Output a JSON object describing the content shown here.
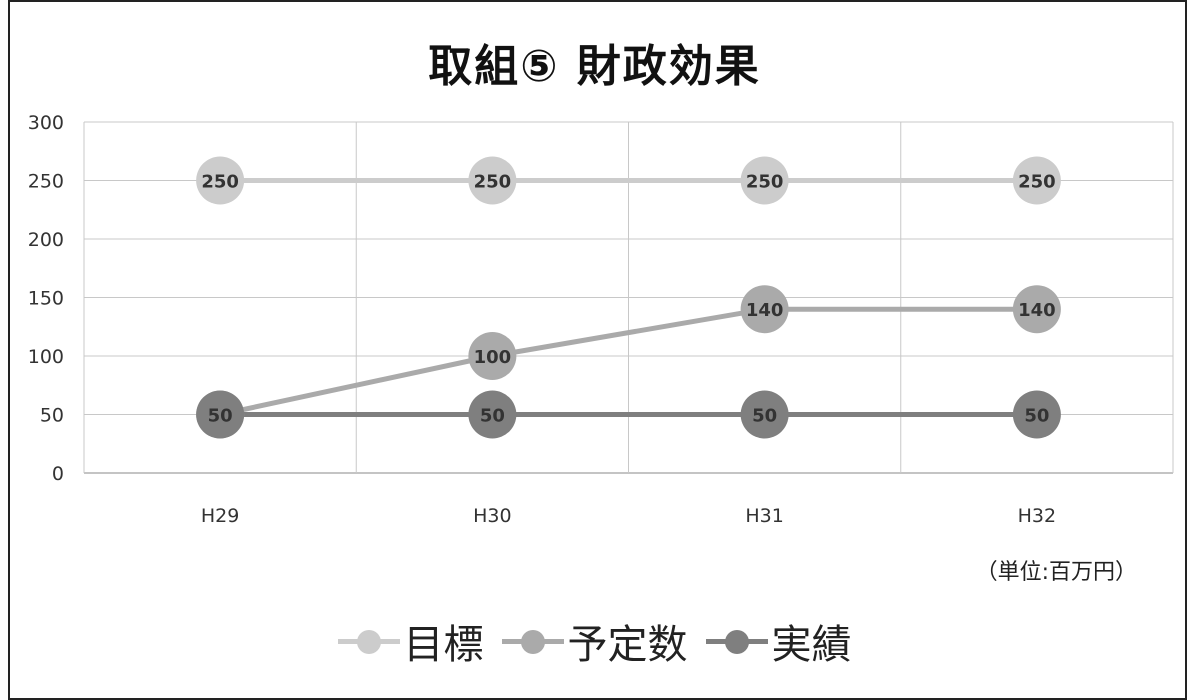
{
  "title": "取組⑤ 財政効果",
  "unit_note": "（単位:百万円）",
  "colors": {
    "target": "#cccccc",
    "planned": "#aaaaaa",
    "actual": "#7f7f7f",
    "grid": "#c8c8c8",
    "axis": "#888888"
  },
  "chart_data": {
    "type": "line",
    "categories": [
      "H29",
      "H30",
      "H31",
      "H32"
    ],
    "ylim": [
      0,
      300
    ],
    "yticks": [
      0,
      50,
      100,
      150,
      200,
      250,
      300
    ],
    "grid": true,
    "legend_position": "bottom",
    "series": [
      {
        "name": "目標",
        "values": [
          250,
          250,
          250,
          250
        ],
        "color": "#cccccc"
      },
      {
        "name": "予定数",
        "values": [
          50,
          100,
          140,
          140
        ],
        "color": "#aaaaaa"
      },
      {
        "name": "実績",
        "values": [
          50,
          50,
          50,
          50
        ],
        "color": "#7f7f7f"
      }
    ]
  }
}
